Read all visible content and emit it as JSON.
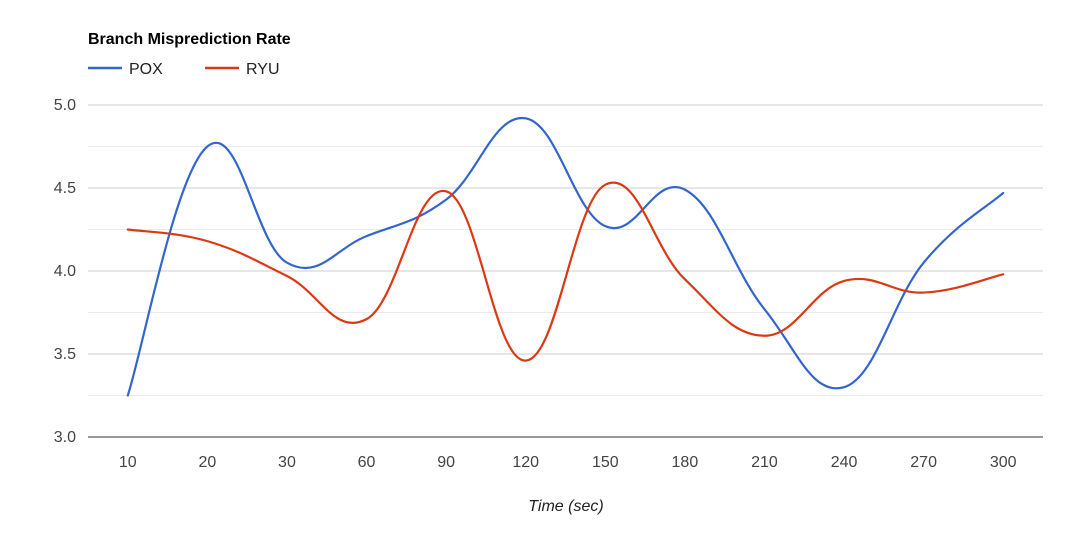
{
  "chart_data": {
    "type": "line",
    "title": "Branch Misprediction Rate",
    "xlabel": "Time (sec)",
    "ylabel": "",
    "categories": [
      "10",
      "20",
      "30",
      "60",
      "90",
      "120",
      "150",
      "180",
      "210",
      "240",
      "270",
      "300"
    ],
    "ylim": [
      3.0,
      5.0
    ],
    "yticks": [
      "3.0",
      "3.5",
      "4.0",
      "4.5",
      "5.0"
    ],
    "grid": true,
    "legend_position": "top-left",
    "series": [
      {
        "name": "POX",
        "color": "#3366cc",
        "values": [
          3.25,
          4.75,
          4.05,
          4.21,
          4.43,
          4.92,
          4.27,
          4.49,
          3.77,
          3.3,
          4.05,
          4.47
        ]
      },
      {
        "name": "RYU",
        "color": "#dc3912",
        "values": [
          4.25,
          4.18,
          3.97,
          3.71,
          4.48,
          3.46,
          4.52,
          3.95,
          3.61,
          3.94,
          3.87,
          3.98
        ]
      }
    ]
  }
}
